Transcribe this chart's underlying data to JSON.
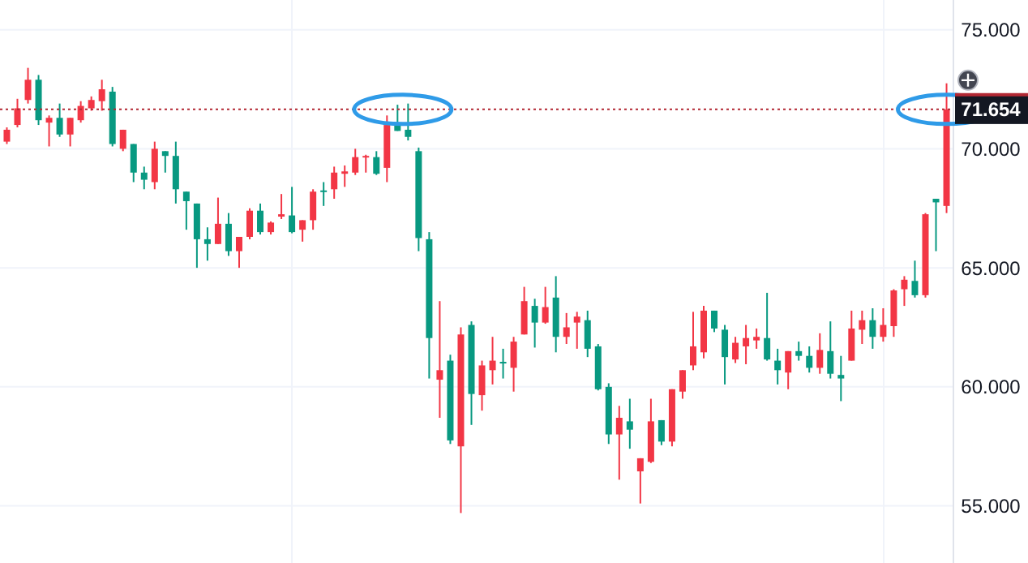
{
  "chart_data": {
    "type": "candlestick",
    "categories": [
      null,
      null,
      null,
      null,
      null,
      null,
      null,
      null,
      null,
      null,
      null,
      null,
      null,
      null,
      null,
      null,
      null,
      null,
      null,
      null,
      null,
      null,
      null,
      null,
      null,
      null,
      null,
      null,
      null,
      null,
      null,
      null,
      null,
      null,
      null,
      null,
      null,
      null,
      null,
      null,
      null,
      null,
      null,
      null,
      null,
      null,
      null,
      null,
      null,
      null,
      null,
      null,
      null,
      null,
      null,
      null,
      null,
      null,
      null,
      null,
      null,
      null,
      null,
      null,
      null,
      null,
      null,
      null,
      null,
      null,
      null,
      null,
      null,
      null,
      null,
      null,
      null,
      null,
      null,
      null,
      null,
      null,
      null,
      null,
      null,
      null,
      null,
      null,
      null,
      null
    ],
    "ohlc": [
      [
        70.3,
        70.9,
        70.2,
        70.8
      ],
      [
        71.0,
        72.1,
        70.9,
        71.7
      ],
      [
        72.05,
        73.4,
        71.9,
        72.9
      ],
      [
        72.9,
        73.1,
        71.0,
        71.2
      ],
      [
        71.1,
        71.4,
        70.1,
        71.3
      ],
      [
        71.3,
        71.9,
        70.5,
        70.6
      ],
      [
        70.6,
        71.3,
        70.1,
        71.3
      ],
      [
        71.2,
        72.0,
        71.1,
        71.8
      ],
      [
        71.7,
        72.2,
        71.6,
        72.05
      ],
      [
        72.0,
        72.9,
        71.6,
        72.5
      ],
      [
        72.4,
        72.6,
        70.1,
        70.2
      ],
      [
        70.0,
        70.8,
        69.9,
        70.8
      ],
      [
        70.2,
        70.2,
        68.6,
        69.0
      ],
      [
        69.0,
        69.25,
        68.3,
        68.7
      ],
      [
        68.6,
        70.3,
        68.3,
        70.0
      ],
      [
        69.9,
        69.9,
        69.0,
        69.7
      ],
      [
        69.7,
        70.3,
        67.7,
        68.3
      ],
      [
        68.2,
        68.2,
        66.6,
        67.8
      ],
      [
        67.7,
        67.7,
        65.0,
        66.2
      ],
      [
        66.2,
        66.7,
        65.3,
        66.0
      ],
      [
        66.0,
        67.95,
        66.0,
        66.85
      ],
      [
        66.85,
        67.3,
        65.5,
        65.7
      ],
      [
        65.7,
        66.3,
        65.0,
        66.3
      ],
      [
        66.3,
        67.5,
        66.2,
        67.4
      ],
      [
        67.4,
        67.7,
        66.4,
        66.5
      ],
      [
        66.5,
        66.95,
        66.4,
        66.9
      ],
      [
        67.15,
        68.1,
        67.05,
        67.25
      ],
      [
        67.2,
        68.4,
        66.45,
        66.5
      ],
      [
        66.6,
        67.0,
        66.1,
        67.0
      ],
      [
        67.0,
        68.3,
        66.6,
        68.2
      ],
      [
        68.25,
        68.6,
        67.6,
        68.2
      ],
      [
        68.3,
        69.25,
        67.9,
        69.0
      ],
      [
        68.95,
        69.3,
        68.4,
        69.05
      ],
      [
        69.0,
        70.0,
        68.9,
        69.65
      ],
      [
        69.65,
        69.75,
        69.0,
        69.7
      ],
      [
        69.65,
        69.9,
        68.9,
        68.95
      ],
      [
        69.2,
        71.4,
        68.6,
        71.0
      ],
      [
        71.0,
        71.85,
        70.75,
        70.75
      ],
      [
        70.8,
        71.9,
        70.35,
        70.5
      ],
      [
        69.9,
        70.05,
        65.7,
        66.25
      ],
      [
        66.2,
        66.5,
        60.35,
        62.05
      ],
      [
        60.3,
        63.6,
        58.7,
        60.7
      ],
      [
        61.1,
        61.35,
        57.6,
        57.75
      ],
      [
        57.5,
        62.5,
        54.7,
        62.2
      ],
      [
        62.6,
        62.75,
        58.4,
        59.7
      ],
      [
        59.65,
        61.1,
        59.0,
        60.9
      ],
      [
        60.7,
        62.1,
        60.1,
        61.1
      ],
      [
        61.05,
        61.6,
        60.35,
        61.0
      ],
      [
        60.8,
        62.1,
        59.8,
        61.9
      ],
      [
        62.2,
        64.2,
        62.2,
        63.6
      ],
      [
        63.4,
        63.7,
        61.65,
        62.7
      ],
      [
        62.7,
        64.2,
        62.65,
        63.35
      ],
      [
        63.75,
        64.65,
        61.45,
        62.1
      ],
      [
        62.1,
        63.1,
        61.8,
        62.5
      ],
      [
        62.7,
        63.15,
        61.6,
        62.95
      ],
      [
        62.8,
        63.2,
        61.25,
        61.6
      ],
      [
        61.7,
        61.8,
        59.85,
        59.9
      ],
      [
        60.0,
        60.15,
        57.6,
        58.0
      ],
      [
        58.0,
        59.2,
        56.1,
        58.7
      ],
      [
        58.55,
        59.5,
        57.4,
        58.2
      ],
      [
        56.45,
        57.0,
        55.1,
        57.0
      ],
      [
        56.85,
        59.5,
        56.8,
        58.55
      ],
      [
        58.6,
        58.6,
        57.55,
        57.7
      ],
      [
        57.7,
        59.9,
        57.5,
        59.9
      ],
      [
        59.8,
        60.7,
        59.5,
        60.7
      ],
      [
        60.9,
        63.15,
        60.7,
        61.7
      ],
      [
        61.45,
        63.4,
        61.2,
        63.2
      ],
      [
        63.2,
        63.2,
        62.3,
        62.45
      ],
      [
        62.4,
        62.6,
        60.1,
        61.25
      ],
      [
        61.15,
        62.1,
        61.0,
        61.85
      ],
      [
        61.7,
        62.6,
        60.95,
        62.05
      ],
      [
        61.95,
        62.45,
        61.6,
        62.1
      ],
      [
        62.05,
        63.95,
        61.1,
        61.15
      ],
      [
        61.1,
        61.6,
        60.1,
        60.7
      ],
      [
        60.6,
        61.5,
        59.9,
        61.5
      ],
      [
        61.5,
        61.9,
        61.1,
        61.3
      ],
      [
        61.3,
        61.7,
        60.6,
        60.8
      ],
      [
        60.8,
        62.25,
        60.55,
        61.55
      ],
      [
        61.5,
        62.75,
        60.35,
        60.55
      ],
      [
        60.5,
        61.3,
        59.4,
        60.35
      ],
      [
        61.1,
        63.2,
        61.1,
        62.45
      ],
      [
        62.4,
        63.2,
        61.8,
        62.8
      ],
      [
        62.8,
        63.3,
        61.6,
        62.1
      ],
      [
        62.1,
        63.3,
        61.9,
        62.6
      ],
      [
        62.55,
        64.1,
        62.1,
        64.05
      ],
      [
        64.1,
        64.65,
        63.4,
        64.5
      ],
      [
        64.45,
        65.3,
        63.75,
        63.85
      ],
      [
        63.85,
        67.3,
        63.75,
        67.25
      ],
      [
        67.9,
        67.9,
        65.7,
        67.75
      ],
      [
        67.6,
        72.75,
        67.3,
        71.654
      ]
    ],
    "colors": [
      "#f23645",
      "#f23645",
      "#f23645",
      "#089981",
      "#f23645",
      "#089981",
      "#f23645",
      "#f23645",
      "#f23645",
      "#f23645",
      "#089981",
      "#f23645",
      "#089981",
      "#089981",
      "#f23645",
      "#089981",
      "#089981",
      "#089981",
      "#089981",
      "#089981",
      "#f23645",
      "#089981",
      "#f23645",
      "#f23645",
      "#089981",
      "#f23645",
      "#f23645",
      "#089981",
      "#f23645",
      "#f23645",
      "#089981",
      "#f23645",
      "#f23645",
      "#f23645",
      "#f23645",
      "#089981",
      "#f23645",
      "#089981",
      "#089981",
      "#089981",
      "#089981",
      "#f23645",
      "#089981",
      "#f23645",
      "#089981",
      "#f23645",
      "#f23645",
      "#089981",
      "#f23645",
      "#f23645",
      "#089981",
      "#f23645",
      "#089981",
      "#f23645",
      "#f23645",
      "#089981",
      "#089981",
      "#089981",
      "#f23645",
      "#089981",
      "#f23645",
      "#f23645",
      "#089981",
      "#f23645",
      "#f23645",
      "#f23645",
      "#f23645",
      "#089981",
      "#089981",
      "#f23645",
      "#f23645",
      "#f23645",
      "#089981",
      "#089981",
      "#f23645",
      "#089981",
      "#089981",
      "#f23645",
      "#089981",
      "#089981",
      "#f23645",
      "#f23645",
      "#089981",
      "#f23645",
      "#f23645",
      "#f23645",
      "#089981",
      "#f23645",
      "#089981",
      "#f23645"
    ],
    "ylim": [
      52.6,
      76.25
    ],
    "yticks": [
      {
        "value": 55,
        "label": "55.000"
      },
      {
        "value": 60,
        "label": "60.000"
      },
      {
        "value": 65,
        "label": "65.000"
      },
      {
        "value": 70,
        "label": "70.000"
      },
      {
        "value": 75,
        "label": "75.000"
      }
    ],
    "grid": true,
    "ref_lines": [
      {
        "axis": "y",
        "value": 71.654,
        "label": "71.654",
        "color": "#b22833",
        "line_style": "dotted"
      }
    ]
  }
}
